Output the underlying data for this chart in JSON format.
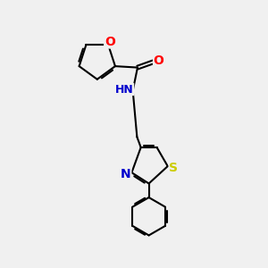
{
  "background_color": "#f0f0f0",
  "bond_color": "#000000",
  "atom_colors": {
    "O": "#ff0000",
    "N": "#0000cd",
    "S": "#cccc00",
    "C": "#000000"
  },
  "font_size": 9,
  "line_width": 1.5
}
